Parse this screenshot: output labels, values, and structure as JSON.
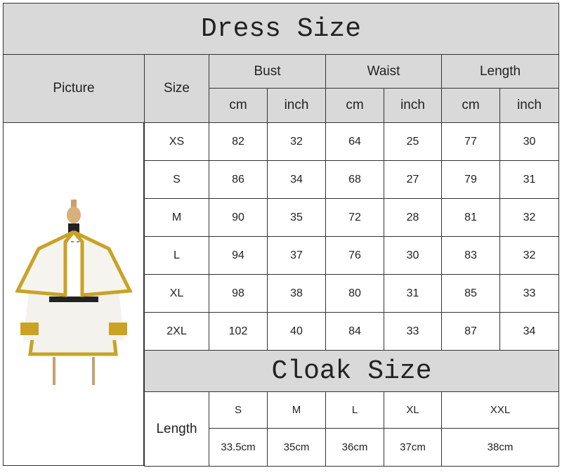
{
  "dress": {
    "title": "Dress Size",
    "headers": {
      "picture": "Picture",
      "size": "Size",
      "bust": "Bust",
      "waist": "Waist",
      "length": "Length",
      "cm": "cm",
      "inch": "inch"
    },
    "rows": [
      {
        "size": "XS",
        "bust_cm": "82",
        "bust_in": "32",
        "waist_cm": "64",
        "waist_in": "25",
        "length_cm": "77",
        "length_in": "30"
      },
      {
        "size": "S",
        "bust_cm": "86",
        "bust_in": "34",
        "waist_cm": "68",
        "waist_in": "27",
        "length_cm": "79",
        "length_in": "31"
      },
      {
        "size": "M",
        "bust_cm": "90",
        "bust_in": "35",
        "waist_cm": "72",
        "waist_in": "28",
        "length_cm": "81",
        "length_in": "32"
      },
      {
        "size": "L",
        "bust_cm": "94",
        "bust_in": "37",
        "waist_cm": "76",
        "waist_in": "30",
        "length_cm": "83",
        "length_in": "32"
      },
      {
        "size": "XL",
        "bust_cm": "98",
        "bust_in": "38",
        "waist_cm": "80",
        "waist_in": "31",
        "length_cm": "85",
        "length_in": "33"
      },
      {
        "size": "2XL",
        "bust_cm": "102",
        "bust_in": "40",
        "waist_cm": "84",
        "waist_in": "33",
        "length_cm": "87",
        "length_in": "34"
      }
    ]
  },
  "cloak": {
    "title": "Cloak Size",
    "row_label": "Length",
    "sizes": [
      "S",
      "M",
      "L",
      "XL",
      "XXL"
    ],
    "lengths": [
      "33.5cm",
      "35cm",
      "36cm",
      "37cm",
      "38cm"
    ]
  },
  "colors": {
    "header_bg": "#d9d9d9",
    "trim_gold": "#c9a227",
    "border": "#333333"
  }
}
